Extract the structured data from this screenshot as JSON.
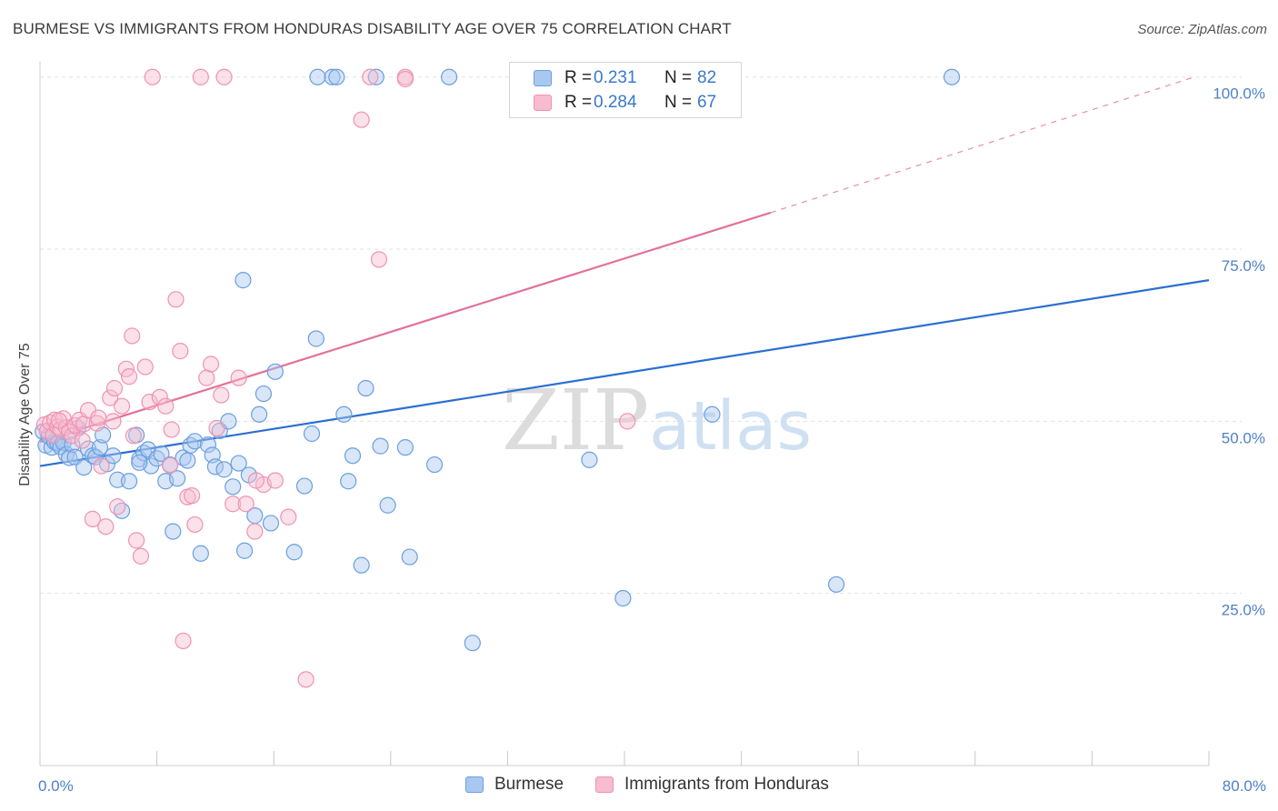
{
  "chart_data": {
    "type": "scatter",
    "title": "BURMESE VS IMMIGRANTS FROM HONDURAS DISABILITY AGE OVER 75 CORRELATION CHART",
    "source": "Source: ZipAtlas.com",
    "watermark": "ZIPatlas",
    "ylabel": "Disability Age Over 75",
    "xlabel": "",
    "xlim": [
      0,
      80
    ],
    "ylim": [
      0,
      103
    ],
    "x_tick_labels": [
      "0.0%",
      "80.0%"
    ],
    "y_ticks": [
      25,
      50,
      75,
      100
    ],
    "y_tick_labels": [
      "25.0%",
      "50.0%",
      "75.0%",
      "100.0%"
    ],
    "grid": true,
    "legend_position": "top-center",
    "colors": {
      "Burmese": {
        "fill": "#a9c8f0",
        "stroke": "#6a9fe0",
        "line": "#2b6fd1"
      },
      "Immigrants from Honduras": {
        "fill": "#f7bcd0",
        "stroke": "#ee93b1",
        "line": "#e2709a"
      }
    },
    "series": [
      {
        "name": "Burmese",
        "r_label": "R =",
        "r": "0.231",
        "n_label": "N =",
        "n": "82",
        "trend": {
          "x0": 0,
          "y0": 43.5,
          "x1": 80,
          "y1": 70.5
        },
        "points": [
          [
            0.2,
            48.5
          ],
          [
            0.4,
            46.5
          ],
          [
            0.6,
            47.8
          ],
          [
            0.8,
            46.2
          ],
          [
            1.0,
            47.0
          ],
          [
            1.2,
            46.8
          ],
          [
            1.4,
            46.3
          ],
          [
            1.6,
            46.9
          ],
          [
            1.8,
            45.2
          ],
          [
            2.0,
            44.7
          ],
          [
            2.2,
            46.6
          ],
          [
            2.4,
            44.8
          ],
          [
            2.6,
            49.0
          ],
          [
            3.0,
            43.3
          ],
          [
            3.3,
            46.0
          ],
          [
            3.6,
            45.0
          ],
          [
            3.8,
            44.8
          ],
          [
            4.1,
            46.2
          ],
          [
            4.3,
            48.0
          ],
          [
            4.6,
            43.8
          ],
          [
            5.0,
            45.0
          ],
          [
            5.3,
            41.5
          ],
          [
            5.6,
            37.0
          ],
          [
            6.1,
            41.3
          ],
          [
            6.6,
            48.0
          ],
          [
            6.8,
            44.5
          ],
          [
            7.1,
            45.4
          ],
          [
            7.4,
            45.9
          ],
          [
            7.6,
            43.5
          ],
          [
            8.0,
            44.6
          ],
          [
            8.3,
            45.3
          ],
          [
            8.6,
            41.3
          ],
          [
            8.9,
            43.7
          ],
          [
            9.1,
            34.0
          ],
          [
            9.4,
            41.7
          ],
          [
            9.8,
            44.7
          ],
          [
            10.1,
            44.3
          ],
          [
            10.3,
            46.5
          ],
          [
            10.6,
            47.1
          ],
          [
            11.0,
            30.8
          ],
          [
            11.5,
            46.6
          ],
          [
            11.8,
            45.1
          ],
          [
            12.0,
            43.4
          ],
          [
            12.3,
            48.6
          ],
          [
            12.6,
            43.0
          ],
          [
            12.9,
            50.0
          ],
          [
            13.2,
            40.5
          ],
          [
            13.6,
            43.9
          ],
          [
            13.9,
            70.5
          ],
          [
            14.3,
            42.2
          ],
          [
            14.7,
            36.3
          ],
          [
            15.0,
            51.0
          ],
          [
            15.3,
            54.0
          ],
          [
            15.8,
            35.2
          ],
          [
            16.1,
            57.2
          ],
          [
            17.4,
            31.0
          ],
          [
            18.1,
            40.6
          ],
          [
            18.6,
            48.2
          ],
          [
            18.9,
            62.0
          ],
          [
            20.0,
            100.0
          ],
          [
            20.3,
            100.0
          ],
          [
            20.8,
            51.0
          ],
          [
            21.1,
            41.3
          ],
          [
            21.4,
            45.0
          ],
          [
            22.0,
            29.1
          ],
          [
            22.3,
            54.8
          ],
          [
            23.0,
            100.0
          ],
          [
            23.3,
            46.4
          ],
          [
            23.8,
            37.8
          ],
          [
            25.0,
            46.2
          ],
          [
            25.3,
            30.3
          ],
          [
            27.0,
            43.7
          ],
          [
            28.0,
            100.0
          ],
          [
            29.6,
            17.8
          ],
          [
            37.6,
            44.4
          ],
          [
            39.9,
            24.3
          ],
          [
            46.0,
            51.0
          ],
          [
            54.5,
            26.3
          ],
          [
            62.4,
            100.0
          ],
          [
            19.0,
            100.0
          ],
          [
            6.8,
            44.0
          ],
          [
            14.0,
            31.2
          ]
        ]
      },
      {
        "name": "Immigrants from Honduras",
        "r_label": "R =",
        "r": "0.284",
        "n_label": "N =",
        "n": "67",
        "trend": {
          "x0": 0,
          "y0": 47.0,
          "x1": 50,
          "y1": 80.3
        },
        "trend_extension": {
          "x0": 50,
          "y0": 80.3,
          "x1": 79,
          "y1": 100.0
        },
        "points": [
          [
            0.3,
            49.5
          ],
          [
            0.5,
            48.6
          ],
          [
            0.7,
            49.8
          ],
          [
            0.9,
            48.0
          ],
          [
            1.0,
            50.2
          ],
          [
            1.2,
            49.2
          ],
          [
            1.4,
            48.8
          ],
          [
            1.6,
            50.4
          ],
          [
            1.8,
            49.1
          ],
          [
            2.0,
            48.5
          ],
          [
            2.2,
            47.9
          ],
          [
            2.4,
            49.4
          ],
          [
            2.7,
            50.2
          ],
          [
            3.0,
            49.6
          ],
          [
            3.3,
            51.6
          ],
          [
            3.6,
            35.8
          ],
          [
            3.9,
            49.7
          ],
          [
            4.2,
            43.5
          ],
          [
            4.5,
            34.7
          ],
          [
            4.8,
            53.4
          ],
          [
            5.1,
            54.8
          ],
          [
            5.3,
            37.6
          ],
          [
            5.6,
            52.2
          ],
          [
            5.9,
            57.6
          ],
          [
            6.1,
            56.5
          ],
          [
            6.3,
            62.4
          ],
          [
            6.6,
            32.7
          ],
          [
            6.9,
            30.4
          ],
          [
            7.2,
            57.9
          ],
          [
            7.5,
            52.8
          ],
          [
            7.7,
            100.0
          ],
          [
            8.2,
            53.5
          ],
          [
            8.6,
            52.2
          ],
          [
            8.9,
            43.6
          ],
          [
            9.3,
            67.7
          ],
          [
            9.6,
            60.2
          ],
          [
            9.8,
            18.1
          ],
          [
            10.1,
            39.0
          ],
          [
            10.4,
            39.2
          ],
          [
            10.6,
            35.0
          ],
          [
            11.0,
            100.0
          ],
          [
            11.4,
            56.3
          ],
          [
            11.7,
            58.3
          ],
          [
            12.1,
            49.0
          ],
          [
            12.4,
            53.8
          ],
          [
            12.6,
            100.0
          ],
          [
            13.2,
            38.0
          ],
          [
            13.6,
            56.3
          ],
          [
            14.1,
            38.0
          ],
          [
            14.7,
            34.0
          ],
          [
            15.3,
            40.8
          ],
          [
            16.1,
            41.4
          ],
          [
            17.0,
            36.1
          ],
          [
            18.2,
            12.5
          ],
          [
            22.0,
            93.8
          ],
          [
            22.6,
            100.0
          ],
          [
            23.2,
            73.5
          ],
          [
            25.0,
            100.0
          ],
          [
            40.2,
            50.0
          ],
          [
            4.0,
            50.5
          ],
          [
            5.0,
            50.0
          ],
          [
            2.9,
            47.2
          ],
          [
            6.4,
            47.9
          ],
          [
            1.3,
            50.1
          ],
          [
            9.0,
            48.8
          ],
          [
            25.0,
            99.7
          ],
          [
            14.8,
            41.4
          ]
        ]
      }
    ]
  }
}
